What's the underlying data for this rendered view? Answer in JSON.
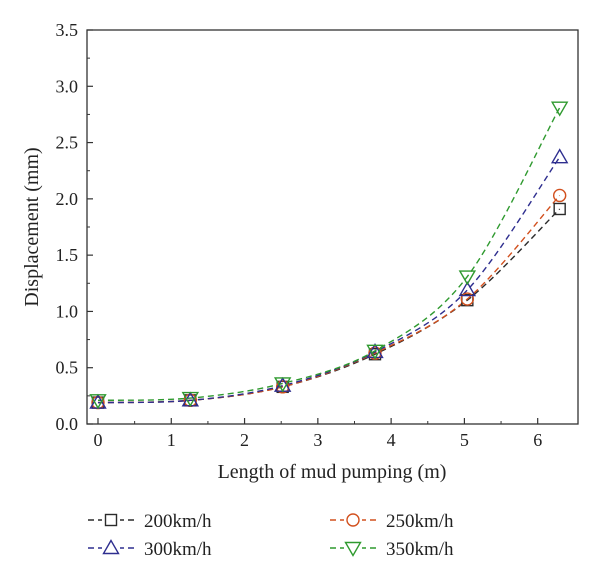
{
  "chart_data": {
    "type": "line",
    "title": "",
    "xlabel": "Length of mud pumping (m)",
    "ylabel": "Displacement (mm)",
    "xlim": [
      -0.15,
      6.55
    ],
    "ylim": [
      0.0,
      3.5
    ],
    "xticks": [
      0,
      1,
      2,
      3,
      4,
      5,
      6
    ],
    "yticks": [
      0.0,
      0.5,
      1.0,
      1.5,
      2.0,
      2.5,
      3.0,
      3.5
    ],
    "xtick_labels": [
      "0",
      "1",
      "2",
      "3",
      "4",
      "5",
      "6"
    ],
    "ytick_labels": [
      "0.0",
      "0.5",
      "1.0",
      "1.5",
      "2.0",
      "2.5",
      "3.0",
      "3.5"
    ],
    "grid": false,
    "legend_position": "bottom",
    "x": [
      0,
      1.26,
      2.52,
      3.78,
      5.04,
      6.3
    ],
    "series": [
      {
        "name": "200km/h",
        "marker": "square",
        "color": "#2b2b2b",
        "values": [
          0.19,
          0.21,
          0.33,
          0.62,
          1.1,
          1.91
        ]
      },
      {
        "name": "250km/h",
        "marker": "circle",
        "color": "#d2501e",
        "values": [
          0.19,
          0.21,
          0.33,
          0.63,
          1.11,
          2.03
        ]
      },
      {
        "name": "300km/h",
        "marker": "triangle-up",
        "color": "#2e2e8f",
        "values": [
          0.19,
          0.21,
          0.34,
          0.64,
          1.19,
          2.37
        ]
      },
      {
        "name": "350km/h",
        "marker": "triangle-down",
        "color": "#2f9a2f",
        "values": [
          0.21,
          0.23,
          0.36,
          0.65,
          1.31,
          2.81
        ]
      }
    ]
  }
}
